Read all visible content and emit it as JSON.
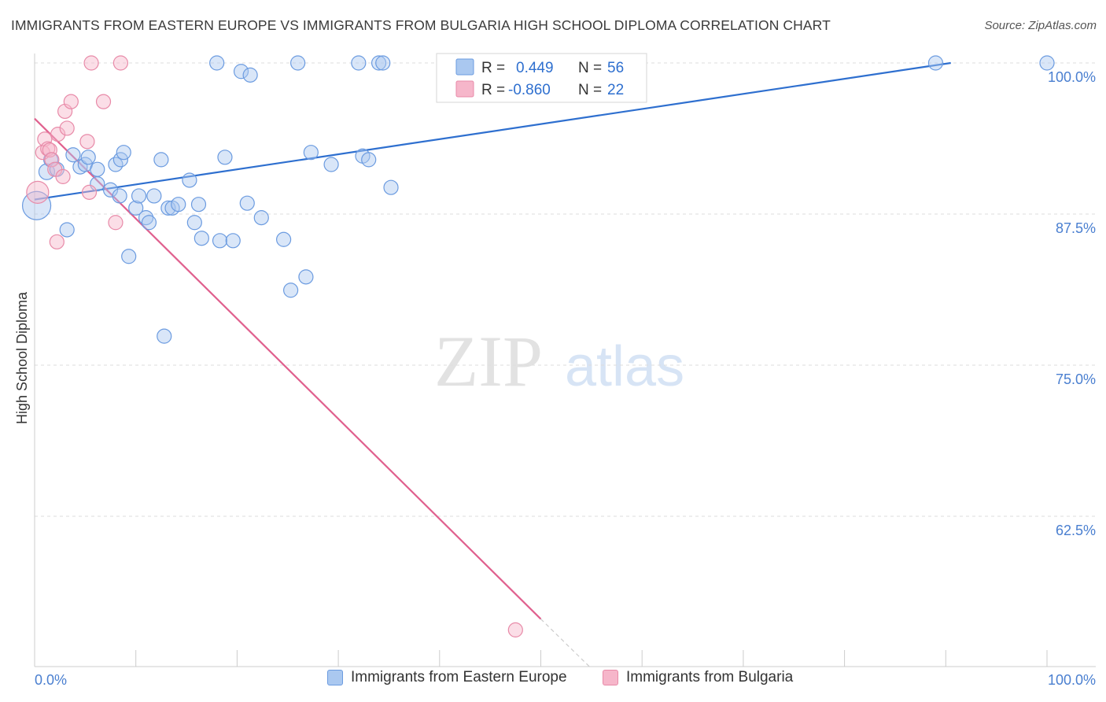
{
  "title": "IMMIGRANTS FROM EASTERN EUROPE VS IMMIGRANTS FROM BULGARIA HIGH SCHOOL DIPLOMA CORRELATION CHART",
  "source": "Source: ZipAtlas.com",
  "watermark": {
    "zip": "ZIP",
    "atlas": "atlas"
  },
  "colors": {
    "blue_fill": "#aac8f0",
    "blue_stroke": "#6b9be0",
    "blue_line": "#2e6fcf",
    "pink_fill": "#f6b6ca",
    "pink_stroke": "#e88aa8",
    "pink_line": "#e0608e",
    "axis_label": "#4a7fd0",
    "grid": "#dddddd"
  },
  "legend_top": [
    {
      "r_label": "R =",
      "r_value": "0.449",
      "n_label": "N =",
      "n_value": "56",
      "color": "blue"
    },
    {
      "r_label": "R =",
      "r_value": "-0.860",
      "n_label": "N =",
      "n_value": "22",
      "color": "pink"
    }
  ],
  "legend_bottom": [
    {
      "label": "Immigrants from Eastern Europe",
      "color": "blue"
    },
    {
      "label": "Immigrants from Bulgaria",
      "color": "pink"
    }
  ],
  "chart_data": {
    "type": "scatter",
    "ylabel": "High School Diploma",
    "x_tick_labels": [
      "0.0%",
      "100.0%"
    ],
    "y_tick_labels": [
      "100.0%",
      "87.5%",
      "75.0%",
      "62.5%"
    ],
    "y_ticks": [
      100.0,
      87.5,
      75.0,
      62.5
    ],
    "xlim": [
      0,
      100
    ],
    "ylim": [
      51.0,
      101.0
    ],
    "grid": true,
    "legend_position": "top-center",
    "series": [
      {
        "name": "Immigrants from Eastern Europe",
        "color": "blue",
        "points": [
          [
            0.2,
            88.2,
            18
          ],
          [
            1.2,
            91.0,
            10
          ],
          [
            1.6,
            92.0,
            9
          ],
          [
            2.2,
            91.2,
            9
          ],
          [
            3.2,
            86.2,
            9
          ],
          [
            3.8,
            92.4,
            9
          ],
          [
            4.5,
            91.4,
            9
          ],
          [
            5.0,
            91.6,
            9
          ],
          [
            5.3,
            92.2,
            9
          ],
          [
            6.2,
            91.2,
            9
          ],
          [
            6.2,
            90.0,
            9
          ],
          [
            7.5,
            89.5,
            9
          ],
          [
            8.0,
            91.6,
            9
          ],
          [
            8.5,
            92.0,
            9
          ],
          [
            8.8,
            92.6,
            9
          ],
          [
            8.4,
            89.0,
            9
          ],
          [
            9.3,
            84.0,
            9
          ],
          [
            10.0,
            88.0,
            9
          ],
          [
            10.3,
            89.0,
            9
          ],
          [
            11.0,
            87.2,
            9
          ],
          [
            11.3,
            86.8,
            9
          ],
          [
            11.8,
            89.0,
            9
          ],
          [
            12.5,
            92.0,
            9
          ],
          [
            12.8,
            77.4,
            9
          ],
          [
            13.2,
            88.0,
            9
          ],
          [
            13.6,
            88.0,
            9
          ],
          [
            14.2,
            88.3,
            9
          ],
          [
            15.3,
            90.3,
            9
          ],
          [
            15.8,
            86.8,
            9
          ],
          [
            16.2,
            88.3,
            9
          ],
          [
            16.5,
            85.5,
            9
          ],
          [
            18.0,
            100.0,
            9
          ],
          [
            18.3,
            85.3,
            9
          ],
          [
            18.8,
            92.2,
            9
          ],
          [
            19.6,
            85.3,
            9
          ],
          [
            20.4,
            99.3,
            9
          ],
          [
            21.0,
            88.4,
            9
          ],
          [
            21.3,
            99.0,
            9
          ],
          [
            22.4,
            87.2,
            9
          ],
          [
            24.6,
            85.4,
            9
          ],
          [
            25.3,
            81.2,
            9
          ],
          [
            26.0,
            100.0,
            9
          ],
          [
            26.8,
            82.3,
            9
          ],
          [
            27.3,
            92.6,
            9
          ],
          [
            29.3,
            91.6,
            9
          ],
          [
            32.0,
            100.0,
            9
          ],
          [
            32.4,
            92.3,
            9
          ],
          [
            33.0,
            92.0,
            9
          ],
          [
            34.0,
            100.0,
            9
          ],
          [
            34.4,
            100.0,
            9
          ],
          [
            35.2,
            89.7,
            9
          ],
          [
            50.0,
            100.0,
            9
          ],
          [
            89.0,
            100.0,
            9
          ],
          [
            100.0,
            100.0,
            9
          ]
        ],
        "trend": {
          "x1": 0,
          "y1": 88.7,
          "x2": 90.5,
          "y2": 100.0
        }
      },
      {
        "name": "Immigrants from Bulgaria",
        "color": "pink",
        "points": [
          [
            0.3,
            89.3,
            14
          ],
          [
            0.8,
            92.6,
            9
          ],
          [
            1.0,
            93.7,
            9
          ],
          [
            1.3,
            92.9,
            9
          ],
          [
            1.5,
            92.8,
            9
          ],
          [
            1.7,
            92.0,
            9
          ],
          [
            2.0,
            91.2,
            9
          ],
          [
            2.2,
            85.2,
            9
          ],
          [
            2.3,
            94.1,
            9
          ],
          [
            2.8,
            90.6,
            9
          ],
          [
            3.0,
            96.0,
            9
          ],
          [
            3.2,
            94.6,
            9
          ],
          [
            3.6,
            96.8,
            9
          ],
          [
            5.2,
            93.5,
            9
          ],
          [
            5.4,
            89.3,
            9
          ],
          [
            5.6,
            100.0,
            9
          ],
          [
            6.8,
            96.8,
            9
          ],
          [
            8.0,
            86.8,
            9
          ],
          [
            8.5,
            100.0,
            9
          ],
          [
            47.5,
            53.1,
            9
          ]
        ],
        "trend": {
          "x1": 0,
          "y1": 95.4,
          "x2": 50.0,
          "y2": 54.0
        },
        "trend_extension": {
          "x1": 50.0,
          "y1": 54.0,
          "x2": 55.0,
          "y2": 49.9
        }
      }
    ]
  }
}
